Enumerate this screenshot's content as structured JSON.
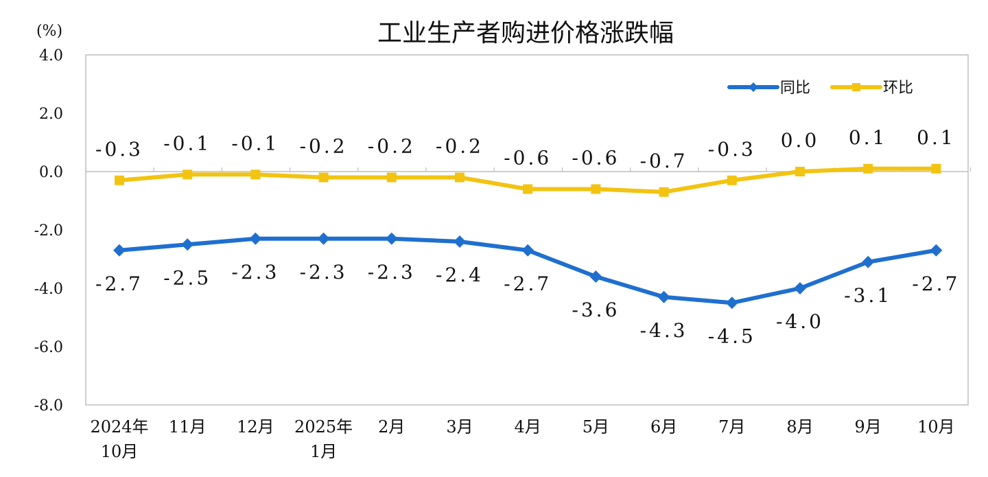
{
  "chart_data": {
    "type": "line",
    "title": "工业生产者购进价格涨跌幅",
    "unit_label": "(%)",
    "ylim": [
      -8.0,
      4.0
    ],
    "y_ticks": [
      "4.0",
      "2.0",
      "0.0",
      "-2.0",
      "-4.0",
      "-6.0",
      "-8.0"
    ],
    "y_tick_values": [
      4,
      2,
      0,
      -2,
      -4,
      -6,
      -8
    ],
    "categories": [
      [
        "2024年",
        "10月"
      ],
      [
        "11月"
      ],
      [
        "12月"
      ],
      [
        "2025年",
        "1月"
      ],
      [
        "2月"
      ],
      [
        "3月"
      ],
      [
        "4月"
      ],
      [
        "5月"
      ],
      [
        "6月"
      ],
      [
        "7月"
      ],
      [
        "8月"
      ],
      [
        "9月"
      ],
      [
        "10月"
      ]
    ],
    "series": [
      {
        "name": "同比",
        "color": "#1f6fcf",
        "marker": "diamond",
        "values": [
          -2.7,
          -2.5,
          -2.3,
          -2.3,
          -2.3,
          -2.4,
          -2.7,
          -3.6,
          -4.3,
          -4.5,
          -4.0,
          -3.1,
          -2.7
        ],
        "labels": [
          "-2.7",
          "-2.5",
          "-2.3",
          "-2.3",
          "-2.3",
          "-2.4",
          "-2.7",
          "-3.6",
          "-4.3",
          "-4.5",
          "-4.0",
          "-3.1",
          "-2.7"
        ]
      },
      {
        "name": "环比",
        "color": "#f2c311",
        "marker": "square",
        "values": [
          -0.3,
          -0.1,
          -0.1,
          -0.2,
          -0.2,
          -0.2,
          -0.6,
          -0.6,
          -0.7,
          -0.3,
          0.0,
          0.1,
          0.1
        ],
        "labels": [
          "-0.3",
          "-0.1",
          "-0.1",
          "-0.2",
          "-0.2",
          "-0.2",
          "-0.6",
          "-0.6",
          "-0.7",
          "-0.3",
          "0.0",
          "0.1",
          "0.1"
        ]
      }
    ],
    "legend_position": "top-right",
    "grid": false
  }
}
